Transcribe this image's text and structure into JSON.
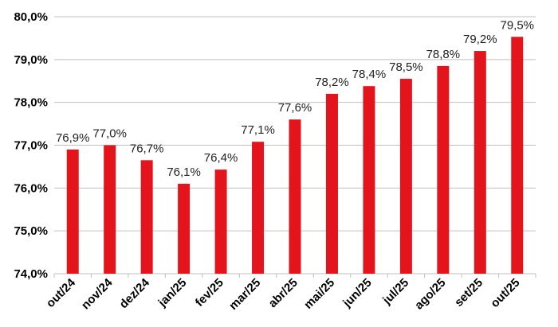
{
  "chart_data": {
    "type": "bar",
    "categories": [
      "out/24",
      "nov/24",
      "dez/24",
      "jan/25",
      "fev/25",
      "mar/25",
      "abr/25",
      "mai/25",
      "jun/25",
      "jul/25",
      "ago/25",
      "set/25",
      "out/25"
    ],
    "values": [
      76.9,
      77.0,
      76.65,
      76.1,
      76.43,
      77.08,
      77.6,
      78.2,
      78.38,
      78.55,
      78.85,
      79.2,
      79.53
    ],
    "data_labels": [
      "76,9%",
      "77,0%",
      "76,7%",
      "76,1%",
      "76,4%",
      "77,1%",
      "77,6%",
      "78,2%",
      "78,4%",
      "78,5%",
      "78,8%",
      "79,2%",
      "79,5%"
    ],
    "y_ticks": [
      74,
      75,
      76,
      77,
      78,
      79,
      80
    ],
    "y_tick_labels": [
      "74,0%",
      "75,0%",
      "76,0%",
      "77,0%",
      "78,0%",
      "79,0%",
      "80,0%"
    ],
    "ylim": [
      74,
      80
    ],
    "grid": true,
    "bar_color": "#e3141b",
    "title": "",
    "xlabel": "",
    "ylabel": ""
  }
}
